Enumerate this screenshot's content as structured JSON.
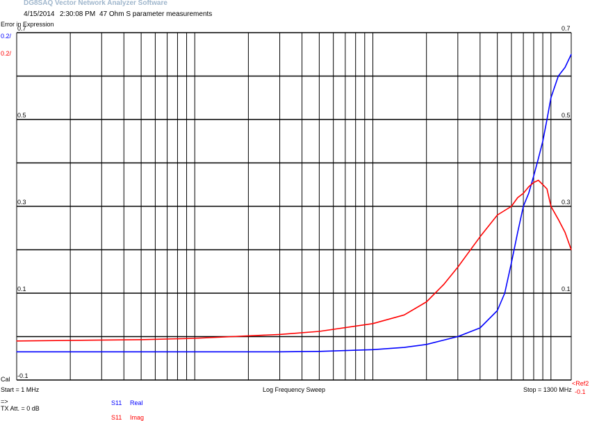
{
  "app": {
    "title": "DG8SAQ Vector Network Analyzer Software"
  },
  "header": {
    "date": "4/15/2014",
    "time": "2:30:08 PM",
    "description": "47 Ohm S parameter measurements"
  },
  "mode_label": "Error in Expression",
  "left_scale_labels": {
    "blue": "0.2/",
    "red": "0.2/"
  },
  "ref_labels": {
    "ref": "<Ref2",
    "ref_value": "-0.1"
  },
  "bottom": {
    "cal_label": "Cal",
    "start_label": "Start = 1 MHz",
    "sweep_label": "Log Frequency Sweep",
    "stop_label": "Stop = 1300 MHz",
    "arrow_label": "=>",
    "tx_att_label": "TX Att. = 0 dB"
  },
  "legend": [
    {
      "param": "S11",
      "name": "Real",
      "color": "#0000ff"
    },
    {
      "param": "S11",
      "name": "Imag",
      "color": "#ff0000"
    }
  ],
  "colors": {
    "grid": "#000000",
    "background": "#ffffff",
    "real": "#0000ff",
    "imag": "#ff0000"
  },
  "chart_data": {
    "type": "line",
    "title": "",
    "xlabel": "Log Frequency Sweep",
    "xscale": "log",
    "xlim": [
      1,
      1300
    ],
    "ylim": [
      -0.1,
      0.7
    ],
    "y_tick_labels": [
      "0.7",
      "0.5",
      "0.3",
      "0.1",
      "-0.1"
    ],
    "grid": true,
    "series": [
      {
        "name": "Real",
        "color": "#0000ff",
        "x": [
          1,
          5,
          10,
          30,
          50,
          100,
          150,
          200,
          300,
          400,
          500,
          550,
          600,
          650,
          700,
          750,
          800,
          850,
          900,
          950,
          1000,
          1100,
          1200,
          1300
        ],
        "y": [
          -0.035,
          -0.035,
          -0.035,
          -0.035,
          -0.034,
          -0.03,
          -0.025,
          -0.018,
          0.0,
          0.02,
          0.06,
          0.1,
          0.17,
          0.24,
          0.3,
          0.33,
          0.37,
          0.41,
          0.45,
          0.5,
          0.55,
          0.6,
          0.62,
          0.65
        ]
      },
      {
        "name": "Imag",
        "color": "#ff0000",
        "x": [
          1,
          5,
          10,
          30,
          50,
          100,
          150,
          200,
          250,
          300,
          400,
          500,
          600,
          650,
          700,
          750,
          800,
          850,
          900,
          950,
          1000,
          1100,
          1200,
          1300
        ],
        "y": [
          -0.01,
          -0.007,
          -0.004,
          0.005,
          0.012,
          0.03,
          0.05,
          0.08,
          0.12,
          0.16,
          0.23,
          0.28,
          0.3,
          0.32,
          0.33,
          0.345,
          0.355,
          0.36,
          0.35,
          0.34,
          0.3,
          0.27,
          0.24,
          0.2
        ]
      }
    ]
  }
}
